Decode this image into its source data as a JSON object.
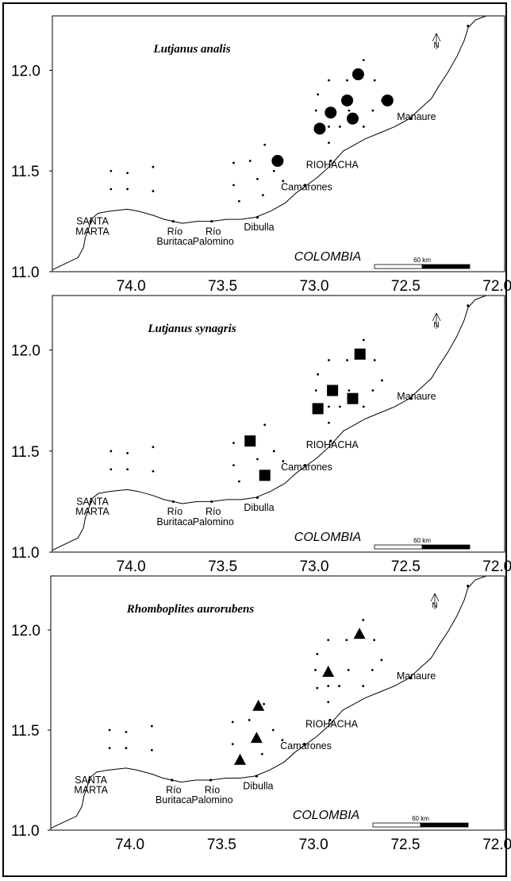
{
  "x_ticks": [
    "74.0",
    "73.5",
    "73.0",
    "72.5",
    "72.0"
  ],
  "y_ticks": [
    "12.0",
    "11.5",
    "11.0"
  ],
  "country": "COLOMBIA",
  "scale_label": "60 km",
  "north_label": "N",
  "places": [
    {
      "label": "SANTA",
      "lon": 74.22,
      "lat": 11.25
    },
    {
      "label": "MARTA",
      "lon": 74.22,
      "lat": 11.2
    },
    {
      "label": "Río",
      "lon": 73.77,
      "lat": 11.2
    },
    {
      "label": "Buritaca",
      "lon": 73.77,
      "lat": 11.15
    },
    {
      "label": "Río",
      "lon": 73.56,
      "lat": 11.2
    },
    {
      "label": "Palomino",
      "lon": 73.56,
      "lat": 11.15
    },
    {
      "label": "Dibulla",
      "lon": 73.31,
      "lat": 11.22
    },
    {
      "label": "Camarones",
      "lon": 73.05,
      "lat": 11.42
    },
    {
      "label": "RIOHACHA",
      "lon": 72.91,
      "lat": 11.53
    },
    {
      "label": "Manaure",
      "lon": 72.45,
      "lat": 11.77
    }
  ],
  "stations": [
    [
      74.11,
      11.5
    ],
    [
      74.02,
      11.49
    ],
    [
      73.88,
      11.52
    ],
    [
      74.11,
      11.41
    ],
    [
      74.02,
      11.41
    ],
    [
      73.88,
      11.4
    ],
    [
      73.27,
      11.63
    ],
    [
      73.35,
      11.55
    ],
    [
      73.44,
      11.54
    ],
    [
      73.22,
      11.5
    ],
    [
      73.44,
      11.43
    ],
    [
      73.31,
      11.46
    ],
    [
      73.17,
      11.45
    ],
    [
      73.41,
      11.35
    ],
    [
      73.28,
      11.38
    ],
    [
      72.73,
      12.05
    ],
    [
      72.92,
      11.95
    ],
    [
      72.82,
      11.95
    ],
    [
      72.67,
      11.95
    ],
    [
      72.98,
      11.88
    ],
    [
      72.63,
      11.85
    ],
    [
      72.81,
      11.8
    ],
    [
      72.68,
      11.8
    ],
    [
      72.99,
      11.8
    ],
    [
      72.92,
      11.72
    ],
    [
      72.73,
      11.72
    ],
    [
      72.86,
      11.72
    ],
    [
      72.92,
      11.64
    ],
    [
      72.98,
      11.71
    ]
  ],
  "panels": [
    {
      "species": "Lutjanus analis",
      "marker": "circle",
      "records": [
        [
          73.2,
          11.55
        ],
        [
          72.97,
          11.71
        ],
        [
          72.91,
          11.79
        ],
        [
          72.82,
          11.85
        ],
        [
          72.79,
          11.76
        ],
        [
          72.76,
          11.98
        ],
        [
          72.6,
          11.85
        ]
      ]
    },
    {
      "species": "Lutjanus synagris",
      "marker": "square",
      "records": [
        [
          73.35,
          11.55
        ],
        [
          73.27,
          11.38
        ],
        [
          72.98,
          11.71
        ],
        [
          72.9,
          11.8
        ],
        [
          72.79,
          11.76
        ],
        [
          72.75,
          11.98
        ]
      ]
    },
    {
      "species": "Rhomboplites aurorubens",
      "marker": "triangle",
      "records": [
        [
          73.3,
          11.62
        ],
        [
          73.31,
          11.46
        ],
        [
          73.4,
          11.35
        ],
        [
          72.92,
          11.79
        ],
        [
          72.75,
          11.98
        ]
      ]
    }
  ]
}
